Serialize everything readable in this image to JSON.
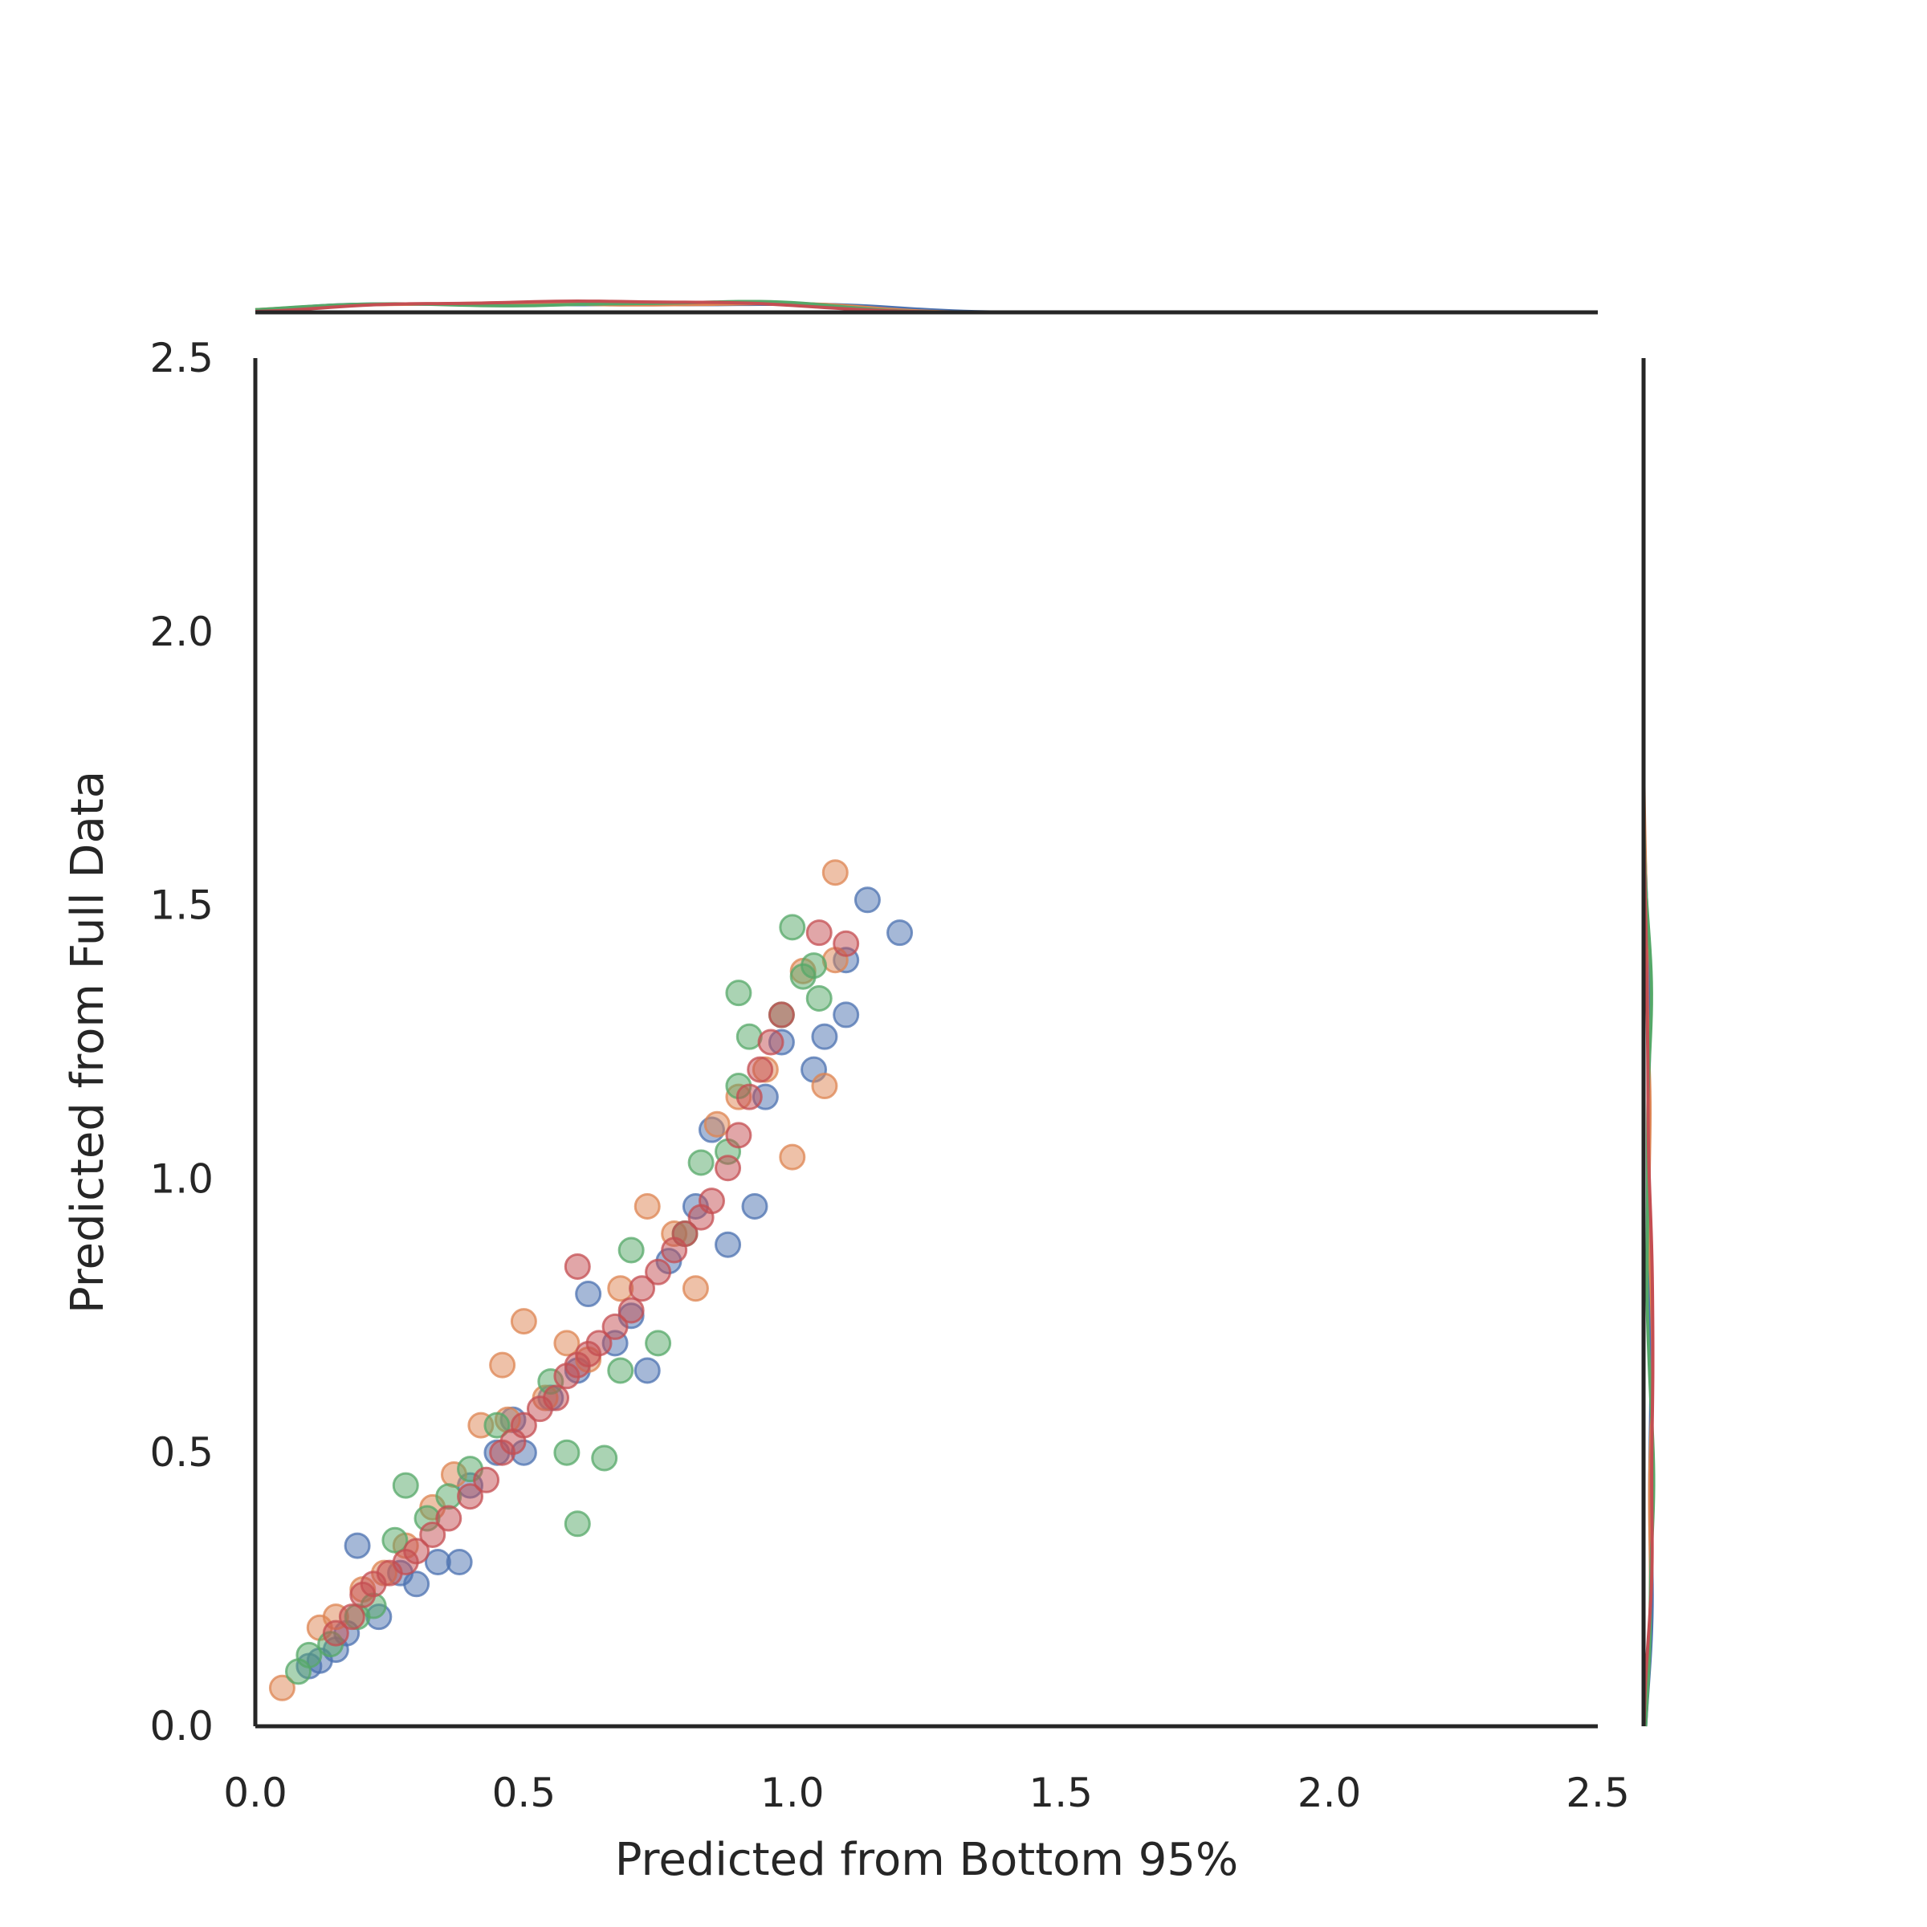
{
  "chart_data": {
    "type": "scatter",
    "title": "",
    "xlabel": "Predicted from Bottom 95%",
    "ylabel": "Predicted from Full Data",
    "xlim": [
      0.0,
      2.5
    ],
    "ylim": [
      0.0,
      2.5
    ],
    "xticks": [
      "0.0",
      "0.5",
      "1.0",
      "1.5",
      "2.0",
      "2.5"
    ],
    "yticks": [
      "0.0",
      "0.5",
      "1.0",
      "1.5",
      "2.0",
      "2.5"
    ],
    "grid": false,
    "legend": "none",
    "marginals": "kde + histogram on top (x) and right (y)",
    "series": [
      {
        "color": "#4c72b0",
        "points": [
          [
            0.1,
            0.11
          ],
          [
            0.12,
            0.12
          ],
          [
            0.15,
            0.14
          ],
          [
            0.17,
            0.17
          ],
          [
            0.19,
            0.33
          ],
          [
            0.23,
            0.2
          ],
          [
            0.27,
            0.28
          ],
          [
            0.3,
            0.26
          ],
          [
            0.34,
            0.3
          ],
          [
            0.38,
            0.3
          ],
          [
            0.4,
            0.44
          ],
          [
            0.45,
            0.5
          ],
          [
            0.48,
            0.56
          ],
          [
            0.5,
            0.5
          ],
          [
            0.55,
            0.6
          ],
          [
            0.6,
            0.65
          ],
          [
            0.62,
            0.79
          ],
          [
            0.67,
            0.7
          ],
          [
            0.7,
            0.75
          ],
          [
            0.73,
            0.65
          ],
          [
            0.77,
            0.85
          ],
          [
            0.82,
            0.95
          ],
          [
            0.85,
            1.09
          ],
          [
            0.88,
            0.88
          ],
          [
            0.93,
            0.95
          ],
          [
            0.95,
            1.15
          ],
          [
            0.98,
            1.25
          ],
          [
            1.04,
            1.2
          ],
          [
            1.06,
            1.26
          ],
          [
            1.1,
            1.3
          ],
          [
            1.1,
            1.4
          ],
          [
            1.14,
            1.51
          ],
          [
            1.2,
            1.45
          ]
        ]
      },
      {
        "color": "#dd8452",
        "points": [
          [
            0.05,
            0.07
          ],
          [
            0.12,
            0.18
          ],
          [
            0.15,
            0.2
          ],
          [
            0.2,
            0.25
          ],
          [
            0.24,
            0.28
          ],
          [
            0.28,
            0.33
          ],
          [
            0.33,
            0.4
          ],
          [
            0.37,
            0.46
          ],
          [
            0.42,
            0.55
          ],
          [
            0.47,
            0.56
          ],
          [
            0.5,
            0.74
          ],
          [
            0.46,
            0.66
          ],
          [
            0.54,
            0.6
          ],
          [
            0.58,
            0.7
          ],
          [
            0.62,
            0.67
          ],
          [
            0.68,
            0.8
          ],
          [
            0.73,
            0.95
          ],
          [
            0.78,
            0.9
          ],
          [
            0.82,
            0.8
          ],
          [
            0.86,
            1.1
          ],
          [
            0.9,
            1.15
          ],
          [
            0.95,
            1.2
          ],
          [
            1.0,
            1.04
          ],
          [
            1.02,
            1.38
          ],
          [
            1.06,
            1.17
          ],
          [
            1.08,
            1.56
          ],
          [
            1.08,
            1.4
          ]
        ]
      },
      {
        "color": "#55a868",
        "points": [
          [
            0.08,
            0.1
          ],
          [
            0.1,
            0.13
          ],
          [
            0.14,
            0.15
          ],
          [
            0.19,
            0.2
          ],
          [
            0.22,
            0.22
          ],
          [
            0.26,
            0.34
          ],
          [
            0.28,
            0.44
          ],
          [
            0.32,
            0.38
          ],
          [
            0.36,
            0.42
          ],
          [
            0.4,
            0.47
          ],
          [
            0.45,
            0.55
          ],
          [
            0.55,
            0.63
          ],
          [
            0.58,
            0.5
          ],
          [
            0.6,
            0.37
          ],
          [
            0.65,
            0.49
          ],
          [
            0.68,
            0.65
          ],
          [
            0.7,
            0.87
          ],
          [
            0.75,
            0.7
          ],
          [
            0.8,
            0.9
          ],
          [
            0.83,
            1.03
          ],
          [
            0.88,
            1.05
          ],
          [
            0.9,
            1.17
          ],
          [
            0.92,
            1.26
          ],
          [
            0.9,
            1.34
          ],
          [
            0.98,
            1.3
          ],
          [
            1.02,
            1.37
          ],
          [
            1.04,
            1.39
          ],
          [
            1.05,
            1.33
          ],
          [
            1.0,
            1.46
          ]
        ]
      },
      {
        "color": "#c44e52",
        "points": [
          [
            0.15,
            0.17
          ],
          [
            0.18,
            0.2
          ],
          [
            0.2,
            0.24
          ],
          [
            0.22,
            0.26
          ],
          [
            0.25,
            0.28
          ],
          [
            0.28,
            0.3
          ],
          [
            0.3,
            0.32
          ],
          [
            0.33,
            0.35
          ],
          [
            0.36,
            0.38
          ],
          [
            0.4,
            0.42
          ],
          [
            0.43,
            0.45
          ],
          [
            0.46,
            0.5
          ],
          [
            0.48,
            0.52
          ],
          [
            0.5,
            0.55
          ],
          [
            0.53,
            0.58
          ],
          [
            0.56,
            0.6
          ],
          [
            0.58,
            0.64
          ],
          [
            0.6,
            0.66
          ],
          [
            0.62,
            0.68
          ],
          [
            0.64,
            0.7
          ],
          [
            0.67,
            0.73
          ],
          [
            0.7,
            0.76
          ],
          [
            0.72,
            0.8
          ],
          [
            0.75,
            0.83
          ],
          [
            0.78,
            0.87
          ],
          [
            0.8,
            0.9
          ],
          [
            0.83,
            0.93
          ],
          [
            0.85,
            0.96
          ],
          [
            0.88,
            1.02
          ],
          [
            0.9,
            1.08
          ],
          [
            0.92,
            1.15
          ],
          [
            0.94,
            1.2
          ],
          [
            0.96,
            1.25
          ],
          [
            0.98,
            1.3
          ],
          [
            0.6,
            0.84
          ],
          [
            1.05,
            1.45
          ],
          [
            1.1,
            1.43
          ]
        ]
      }
    ]
  }
}
